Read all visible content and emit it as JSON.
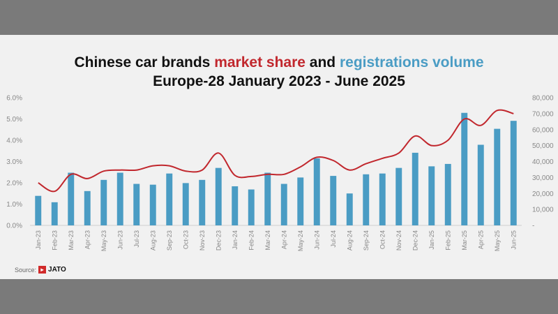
{
  "title": {
    "part1": "Chinese car brands ",
    "part2": "market share",
    "part3": " and ",
    "part4": "registrations volume"
  },
  "subtitle": "Europe-28 January 2023 - June 2025",
  "source_label": "Source:",
  "source_logo": "JATO",
  "colors": {
    "bar": "#4a9cc4",
    "line": "#c1272d",
    "background": "#f1f1f1"
  },
  "chart_data": {
    "type": "bar",
    "categories": [
      "Jan-23",
      "Feb-23",
      "Mar-23",
      "Apr-23",
      "May-23",
      "Jun-23",
      "Jul-23",
      "Aug-23",
      "Sep-23",
      "Oct-23",
      "Nov-23",
      "Dec-23",
      "Jan-24",
      "Feb-24",
      "Mar-24",
      "Apr-24",
      "May-24",
      "Jun-24",
      "Jul-24",
      "Aug-24",
      "Sep-24",
      "Oct-24",
      "Nov-24",
      "Dec-24",
      "Jan-25",
      "Feb-25",
      "Mar-25",
      "Apr-25",
      "May-25",
      "Jun-25"
    ],
    "series": [
      {
        "type": "bar",
        "axis": "right",
        "values": [
          18500,
          14500,
          33000,
          21500,
          28500,
          33000,
          26000,
          25500,
          32500,
          26500,
          28500,
          36000,
          24500,
          22500,
          33000,
          26000,
          30000,
          42000,
          31000,
          20000,
          32000,
          32500,
          36000,
          45500,
          37000,
          38500,
          70500,
          50500,
          60500,
          65500
        ]
      },
      {
        "type": "line",
        "axis": "left",
        "values": [
          2.0,
          1.6,
          2.4,
          2.2,
          2.55,
          2.6,
          2.6,
          2.8,
          2.8,
          2.55,
          2.6,
          3.4,
          2.35,
          2.3,
          2.4,
          2.4,
          2.75,
          3.2,
          3.05,
          2.6,
          2.9,
          3.15,
          3.4,
          4.2,
          3.75,
          4.0,
          5.0,
          4.7,
          5.4,
          5.25
        ]
      }
    ],
    "y_left": {
      "ticks": [
        "0.0%",
        "1.0%",
        "2.0%",
        "3.0%",
        "4.0%",
        "5.0%",
        "6.0%"
      ],
      "ylim": [
        0,
        6
      ]
    },
    "y_right": {
      "ticks": [
        "-",
        "10,000",
        "20,000",
        "30,000",
        "40,000",
        "50,000",
        "60,000",
        "70,000",
        "80,000"
      ],
      "ylim": [
        0,
        80000
      ]
    },
    "grid": false,
    "legend": "none"
  }
}
